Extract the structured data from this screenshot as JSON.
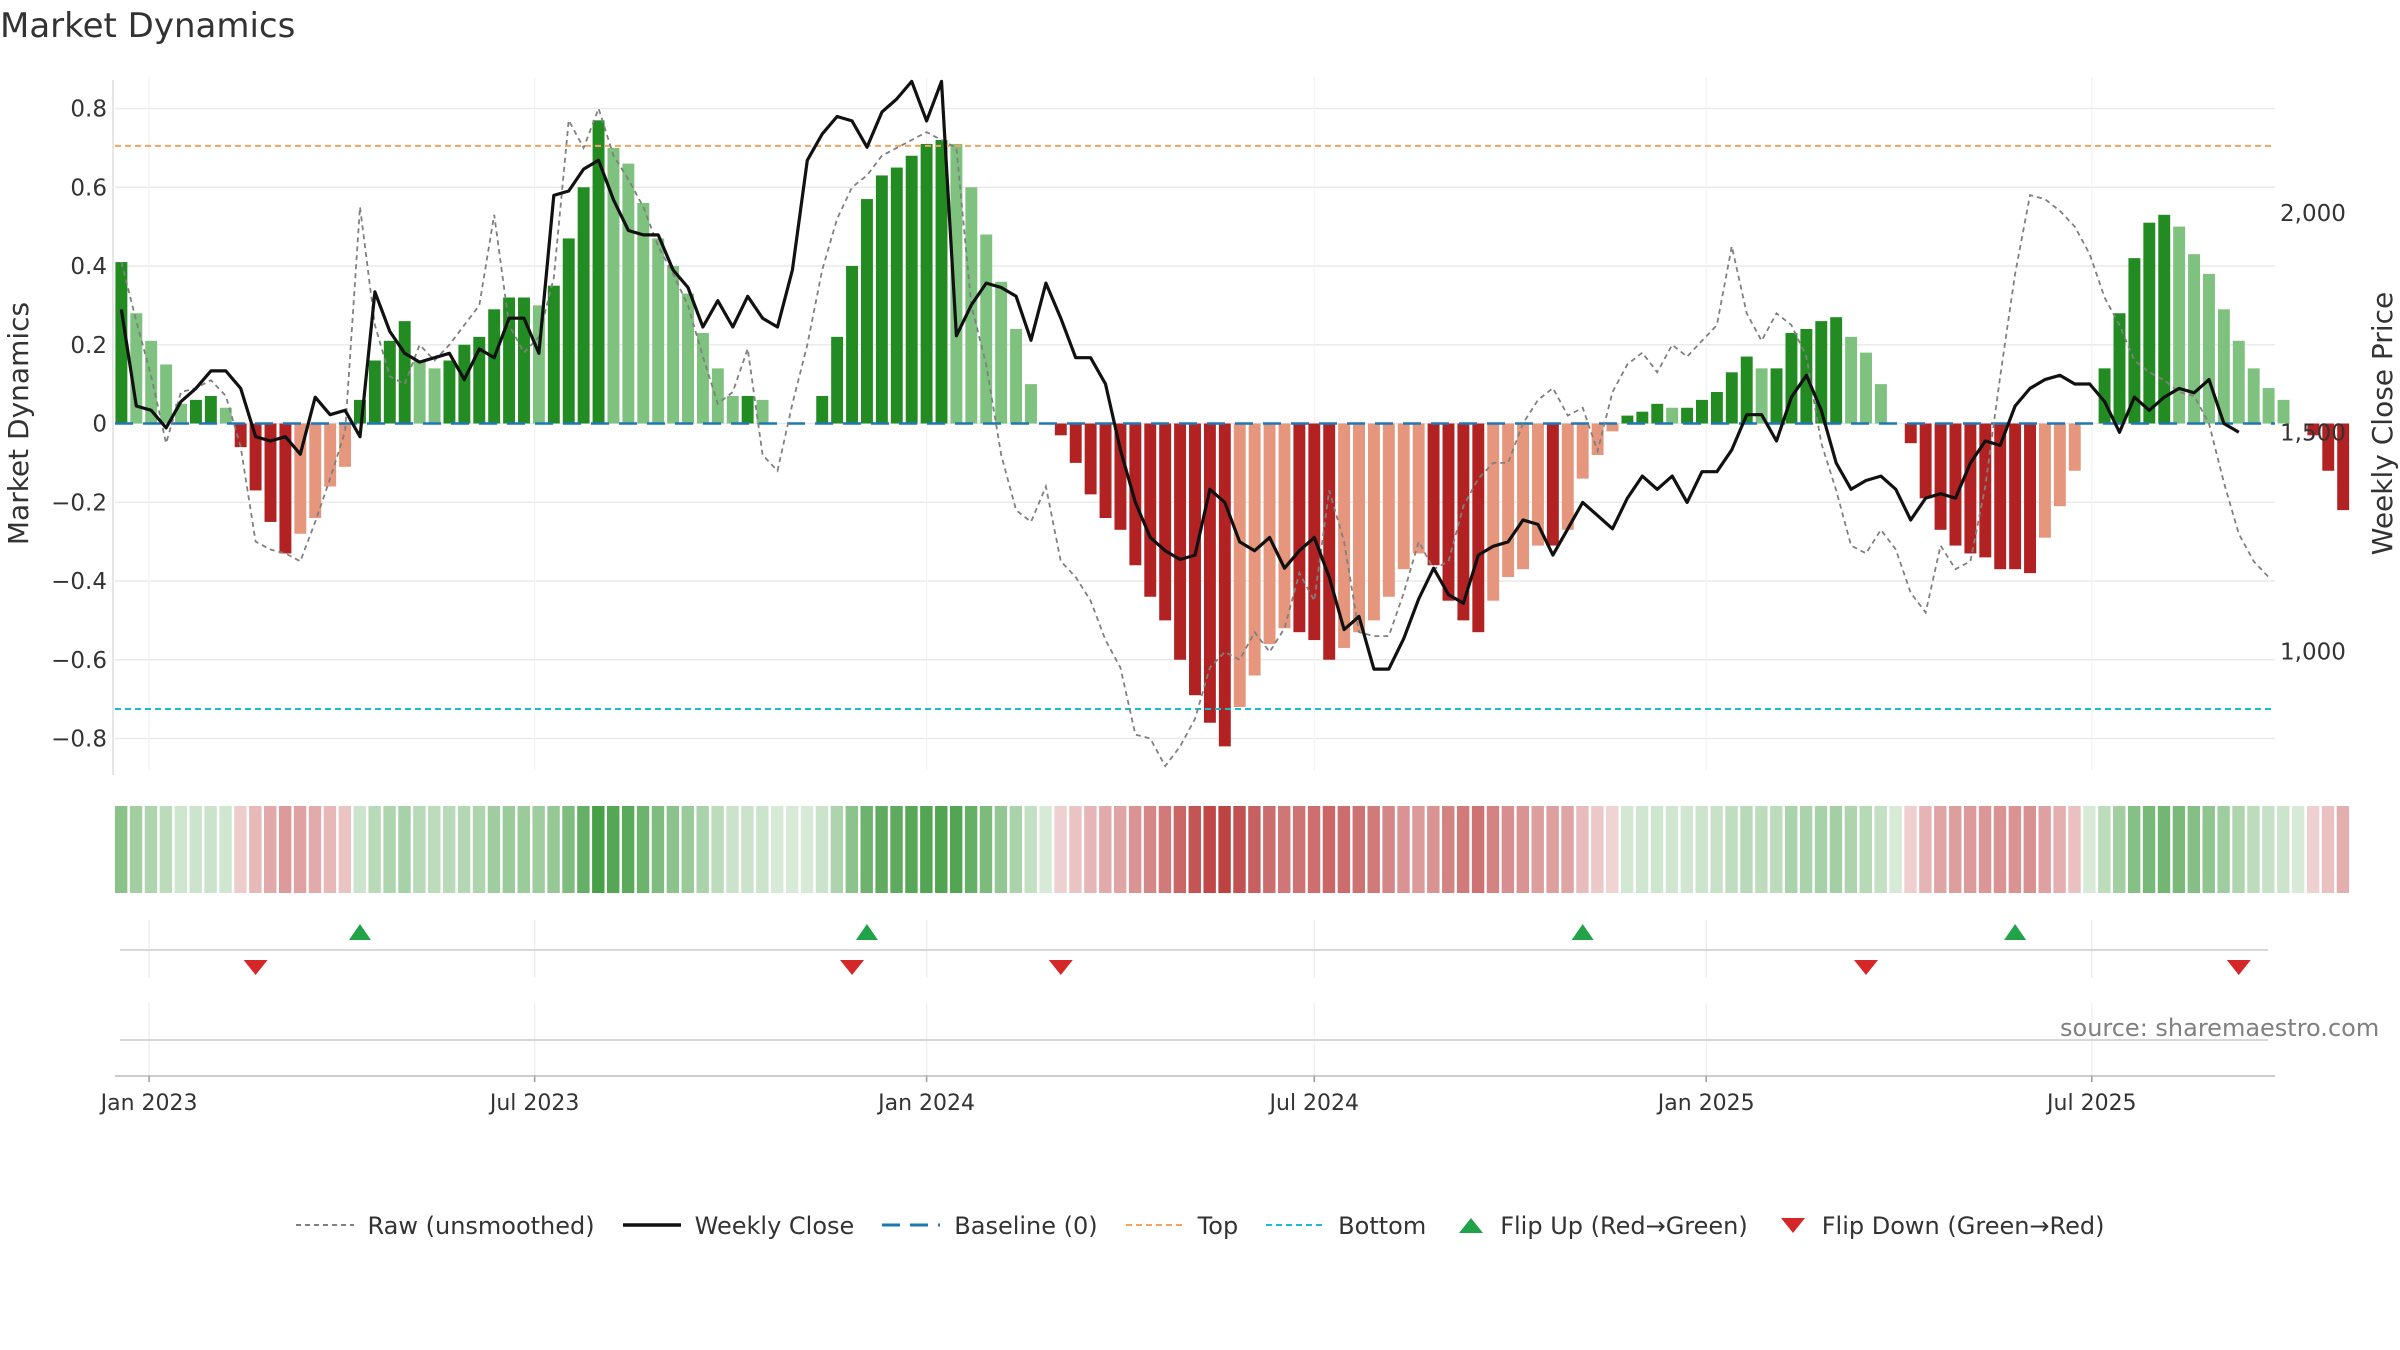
{
  "title": "Market Dynamics",
  "source_note": "source: sharemaestro.com",
  "colors": {
    "green_strong": "#228b22",
    "green_light": "#7fc17f",
    "red_strong": "#b22222",
    "red_light": "#e5967c",
    "weekly_close": "#111111",
    "raw": "#808080",
    "baseline": "#1f77b4",
    "top": "#f4a460",
    "bottom": "#17becf",
    "flip_up": "#22a34a",
    "flip_down": "#d62728",
    "grid": "#eaeaea"
  },
  "legend": [
    {
      "key": "raw",
      "label": "Raw (unsmoothed)"
    },
    {
      "key": "close",
      "label": "Weekly Close"
    },
    {
      "key": "baseline",
      "label": "Baseline (0)"
    },
    {
      "key": "top",
      "label": "Top"
    },
    {
      "key": "bottom",
      "label": "Bottom"
    },
    {
      "key": "flip_up",
      "label": "Flip Up (Red→Green)"
    },
    {
      "key": "flip_down",
      "label": "Flip Down (Green→Red)"
    }
  ],
  "chart_data": {
    "type": "bar",
    "x_start": "2022-12-19",
    "x_step_days": 7,
    "xlim": [
      "2022-12-16",
      "2025-09-25"
    ],
    "x_ticks": [
      {
        "date": "2023-01-01",
        "label": "Jan 2023"
      },
      {
        "date": "2023-07-01",
        "label": "Jul 2023"
      },
      {
        "date": "2024-01-01",
        "label": "Jan 2024"
      },
      {
        "date": "2024-07-01",
        "label": "Jul 2024"
      },
      {
        "date": "2025-01-01",
        "label": "Jan 2025"
      },
      {
        "date": "2025-07-01",
        "label": "Jul 2025"
      }
    ],
    "ylabel": "Market Dynamics",
    "ylabel_right": "Weekly Close Price",
    "ylim": [
      -0.88,
      0.88
    ],
    "y_ticks": [
      -0.8,
      -0.6,
      -0.4,
      -0.2,
      0,
      0.2,
      0.4,
      0.6,
      0.8
    ],
    "y_tick_labels": [
      "−0.8",
      "−0.6",
      "−0.4",
      "−0.2",
      "0",
      "0.2",
      "0.4",
      "0.6",
      "0.8"
    ],
    "y2lim": [
      730,
      2310
    ],
    "y2_ticks": [
      1000,
      1500,
      2000
    ],
    "y2_tick_labels": [
      "1,000",
      "1,500",
      "2,000"
    ],
    "baseline": 0,
    "top_line": 0.705,
    "bottom_line": -0.725,
    "values": [
      0.41,
      0.28,
      0.21,
      0.15,
      0.05,
      0.06,
      0.07,
      0.04,
      -0.06,
      -0.17,
      -0.25,
      -0.33,
      -0.28,
      -0.24,
      -0.16,
      -0.11,
      0.06,
      0.16,
      0.21,
      0.26,
      0.16,
      0.14,
      0.16,
      0.2,
      0.22,
      0.29,
      0.32,
      0.32,
      0.3,
      0.35,
      0.47,
      0.6,
      0.77,
      0.7,
      0.66,
      0.56,
      0.47,
      0.4,
      0.33,
      0.23,
      0.14,
      0.07,
      0.07,
      0.06,
      0,
      0,
      0,
      0.07,
      0.22,
      0.4,
      0.57,
      0.63,
      0.65,
      0.68,
      0.71,
      0.72,
      0.71,
      0.6,
      0.48,
      0.36,
      0.24,
      0.1,
      0,
      -0.03,
      -0.1,
      -0.18,
      -0.24,
      -0.27,
      -0.36,
      -0.44,
      -0.5,
      -0.6,
      -0.69,
      -0.76,
      -0.82,
      -0.72,
      -0.64,
      -0.56,
      -0.52,
      -0.53,
      -0.55,
      -0.6,
      -0.57,
      -0.53,
      -0.5,
      -0.44,
      -0.37,
      -0.33,
      -0.36,
      -0.45,
      -0.5,
      -0.53,
      -0.45,
      -0.39,
      -0.37,
      -0.31,
      -0.31,
      -0.27,
      -0.14,
      -0.08,
      -0.02,
      0.02,
      0.03,
      0.05,
      0.04,
      0.04,
      0.06,
      0.08,
      0.13,
      0.17,
      0.14,
      0.14,
      0.23,
      0.24,
      0.26,
      0.27,
      0.22,
      0.18,
      0.1,
      0,
      -0.05,
      -0.19,
      -0.27,
      -0.31,
      -0.33,
      -0.34,
      -0.37,
      -0.37,
      -0.38,
      -0.29,
      -0.21,
      -0.12,
      0,
      0.14,
      0.28,
      0.42,
      0.51,
      0.53,
      0.5,
      0.43,
      0.38,
      0.29,
      0.21,
      0.14,
      0.09,
      0.06,
      0,
      -0.03,
      -0.12,
      -0.22
    ],
    "raw_values": [
      0.41,
      0.26,
      0.12,
      -0.05,
      0.08,
      0.09,
      0.11,
      0.07,
      -0.06,
      -0.3,
      -0.32,
      -0.33,
      -0.35,
      -0.25,
      -0.14,
      -0.02,
      0.55,
      0.25,
      0.12,
      0.1,
      0.2,
      0.16,
      0.2,
      0.25,
      0.3,
      0.53,
      0.25,
      0.18,
      0.22,
      0.37,
      0.77,
      0.7,
      0.8,
      0.68,
      0.62,
      0.55,
      0.45,
      0.38,
      0.3,
      0.17,
      0.05,
      0.08,
      0.19,
      -0.08,
      -0.12,
      0.05,
      0.2,
      0.39,
      0.52,
      0.6,
      0.63,
      0.68,
      0.7,
      0.72,
      0.74,
      0.72,
      0.7,
      0.3,
      0.15,
      -0.08,
      -0.22,
      -0.25,
      -0.16,
      -0.35,
      -0.39,
      -0.45,
      -0.55,
      -0.62,
      -0.79,
      -0.8,
      -0.87,
      -0.82,
      -0.75,
      -0.62,
      -0.58,
      -0.6,
      -0.53,
      -0.58,
      -0.52,
      -0.38,
      -0.45,
      -0.17,
      -0.3,
      -0.53,
      -0.54,
      -0.54,
      -0.43,
      -0.3,
      -0.37,
      -0.35,
      -0.21,
      -0.14,
      -0.1,
      -0.1,
      0.0,
      0.06,
      0.09,
      0.02,
      0.04,
      -0.07,
      0.08,
      0.15,
      0.18,
      0.13,
      0.2,
      0.17,
      0.21,
      0.25,
      0.45,
      0.28,
      0.21,
      0.28,
      0.25,
      0.17,
      -0.05,
      -0.17,
      -0.31,
      -0.33,
      -0.27,
      -0.32,
      -0.43,
      -0.48,
      -0.31,
      -0.37,
      -0.35,
      -0.16,
      0.12,
      0.38,
      0.58,
      0.57,
      0.54,
      0.5,
      0.43,
      0.32,
      0.25,
      0.16,
      0.13,
      0.11,
      0.08,
      0.07,
      0.0,
      -0.15,
      -0.28,
      -0.35,
      -0.39
    ],
    "close_series": {
      "name": "Weekly Close",
      "values": [
        1780,
        1560,
        1550,
        1510,
        1570,
        1600,
        1640,
        1640,
        1600,
        1490,
        1480,
        1490,
        1450,
        1580,
        1540,
        1550,
        1490,
        1820,
        1730,
        1680,
        1660,
        1670,
        1680,
        1620,
        1690,
        1670,
        1760,
        1760,
        1680,
        2040,
        2050,
        2100,
        2120,
        2030,
        1960,
        1950,
        1950,
        1870,
        1830,
        1740,
        1800,
        1740,
        1810,
        1760,
        1740,
        1870,
        2120,
        2180,
        2220,
        2210,
        2150,
        2230,
        2260,
        2300,
        2210,
        2300,
        1720,
        1790,
        1840,
        1830,
        1810,
        1710,
        1840,
        1760,
        1670,
        1670,
        1610,
        1460,
        1340,
        1260,
        1230,
        1210,
        1220,
        1370,
        1340,
        1250,
        1230,
        1260,
        1190,
        1230,
        1260,
        1170,
        1050,
        1080,
        960,
        960,
        1030,
        1120,
        1190,
        1130,
        1110,
        1220,
        1240,
        1250,
        1300,
        1290,
        1220,
        1280,
        1340,
        1310,
        1280,
        1350,
        1400,
        1370,
        1400,
        1340,
        1410,
        1410,
        1460,
        1540,
        1540,
        1480,
        1580,
        1630,
        1550,
        1430,
        1370,
        1390,
        1400,
        1370,
        1300,
        1350,
        1360,
        1350,
        1430,
        1480,
        1470,
        1560,
        1600,
        1620,
        1630,
        1610,
        1610,
        1570,
        1500,
        1580,
        1550,
        1580,
        1600,
        1590,
        1620,
        1520,
        1500
      ]
    },
    "flips": [
      {
        "date": "2023-02-20",
        "direction": "down"
      },
      {
        "date": "2023-04-10",
        "direction": "up"
      },
      {
        "date": "2023-11-27",
        "direction": "down"
      },
      {
        "date": "2023-12-04",
        "direction": "up"
      },
      {
        "date": "2024-03-04",
        "direction": "down"
      },
      {
        "date": "2024-11-04",
        "direction": "up"
      },
      {
        "date": "2025-03-17",
        "direction": "down"
      },
      {
        "date": "2025-05-26",
        "direction": "up"
      },
      {
        "date": "2025-09-08",
        "direction": "down"
      }
    ]
  }
}
